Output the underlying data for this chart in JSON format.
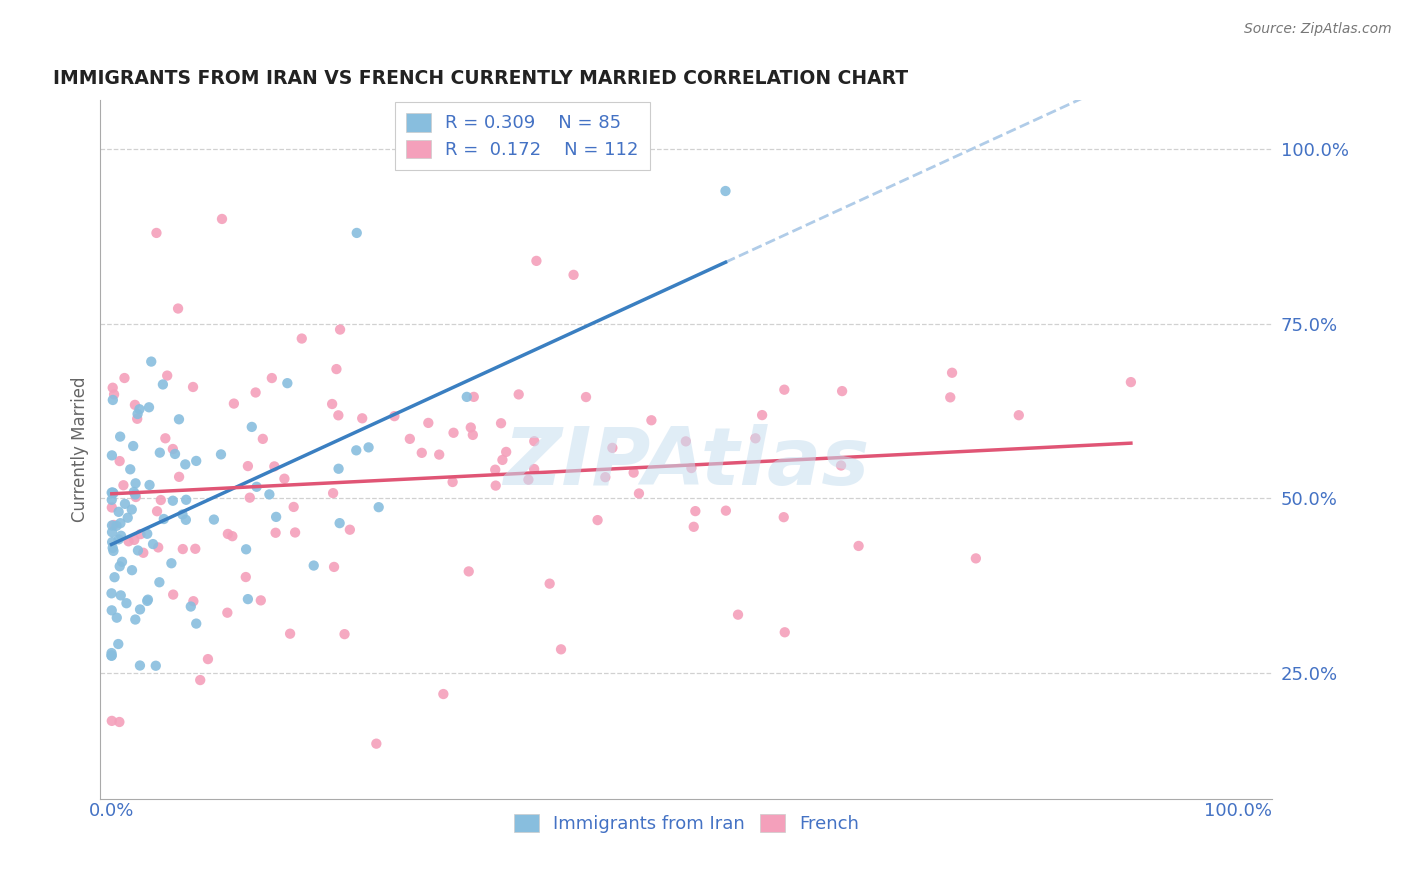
{
  "title": "IMMIGRANTS FROM IRAN VS FRENCH CURRENTLY MARRIED CORRELATION CHART",
  "source": "Source: ZipAtlas.com",
  "ylabel": "Currently Married",
  "ytick_labels": [
    "100.0%",
    "75.0%",
    "50.0%",
    "25.0%"
  ],
  "ytick_values": [
    1.0,
    0.75,
    0.5,
    0.25
  ],
  "xlim": [
    0.0,
    1.0
  ],
  "blue_R": 0.309,
  "blue_N": 85,
  "pink_R": 0.172,
  "pink_N": 112,
  "blue_color": "#88bede",
  "pink_color": "#f4a0bb",
  "blue_line_color": "#3a7fc1",
  "pink_line_color": "#e05575",
  "blue_dash_color": "#b0cce8",
  "tick_color": "#4472c4",
  "grid_color": "#cccccc",
  "watermark": "ZIPAtlas",
  "watermark_color": "#c8dff0",
  "legend_label_color": "#4472c4",
  "ylabel_color": "#666666",
  "title_color": "#222222",
  "source_color": "#777777"
}
